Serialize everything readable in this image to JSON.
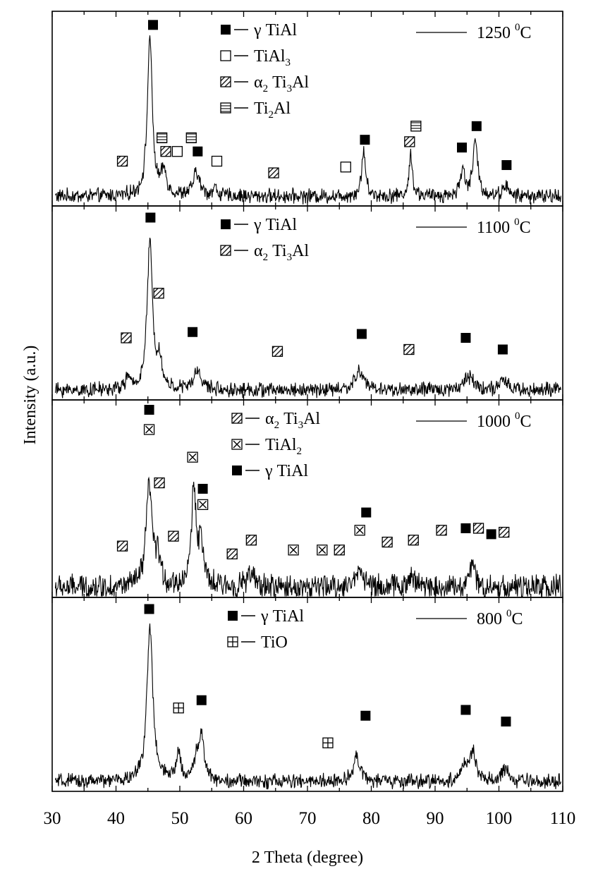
{
  "chart_data": {
    "type": "line",
    "title": "",
    "xlabel": "2 Theta (degree)",
    "ylabel": "Intensity (a.u.)",
    "xlim": [
      30,
      110
    ],
    "x_ticks": [
      30,
      40,
      50,
      60,
      70,
      80,
      90,
      100,
      110
    ],
    "x_tick_labels": [
      "30",
      "40",
      "50",
      "60",
      "70",
      "80",
      "90",
      "100",
      "110"
    ],
    "ylim": [
      0,
      100
    ],
    "marker_types": {
      "gamma": "filled-square",
      "tial3": "open-square",
      "alpha2": "hatched-square",
      "ti2al": "striped-square",
      "tial2": "crossed-square",
      "tio": "grid-square"
    },
    "panels": [
      {
        "id": "p1250",
        "temperature": {
          "value": "1250",
          "sup": "0",
          "unit": "C"
        },
        "noise": 3,
        "peaks": [
          {
            "x": 45.3,
            "h": 82,
            "w": 0.45
          },
          {
            "x": 47.5,
            "h": 12,
            "w": 0.5
          },
          {
            "x": 52.6,
            "h": 12,
            "w": 0.6
          },
          {
            "x": 55.5,
            "h": 4,
            "w": 0.4
          },
          {
            "x": 78.8,
            "h": 24,
            "w": 0.35
          },
          {
            "x": 86.2,
            "h": 22,
            "w": 0.3
          },
          {
            "x": 94.3,
            "h": 14,
            "w": 0.4
          },
          {
            "x": 96.3,
            "h": 28,
            "w": 0.45
          },
          {
            "x": 101.0,
            "h": 6,
            "w": 0.4
          }
        ],
        "legend": [
          {
            "marker": "gamma",
            "sub": "",
            "text": "γ TiAl"
          },
          {
            "marker": "tial3",
            "sub": "3",
            "text": "TiAl"
          },
          {
            "marker": "alpha2",
            "sub": "3",
            "text": "α Ti Al"
          },
          {
            "marker": "ti2al",
            "sub": "2",
            "text": "Ti Al"
          }
        ],
        "markers": [
          {
            "type": "gamma",
            "x": 45.8,
            "y": 93
          },
          {
            "type": "ti2al",
            "x": 47.2,
            "y": 35
          },
          {
            "type": "alpha2",
            "x": 47.8,
            "y": 28
          },
          {
            "type": "tial3",
            "x": 49.6,
            "y": 28
          },
          {
            "type": "ti2al",
            "x": 51.8,
            "y": 35
          },
          {
            "type": "gamma",
            "x": 52.8,
            "y": 28
          },
          {
            "type": "tial3",
            "x": 55.8,
            "y": 23
          },
          {
            "type": "alpha2",
            "x": 41.0,
            "y": 23
          },
          {
            "type": "alpha2",
            "x": 64.7,
            "y": 17
          },
          {
            "type": "tial3",
            "x": 76.0,
            "y": 20
          },
          {
            "type": "gamma",
            "x": 79.0,
            "y": 34
          },
          {
            "type": "alpha2",
            "x": 86.0,
            "y": 33
          },
          {
            "type": "ti2al",
            "x": 87.0,
            "y": 41
          },
          {
            "type": "gamma",
            "x": 94.2,
            "y": 30
          },
          {
            "type": "gamma",
            "x": 96.5,
            "y": 41
          },
          {
            "type": "gamma",
            "x": 101.2,
            "y": 21
          }
        ]
      },
      {
        "id": "p1100",
        "temperature": {
          "value": "1100",
          "sup": "0",
          "unit": "C"
        },
        "noise": 3,
        "peaks": [
          {
            "x": 45.3,
            "h": 76,
            "w": 0.5
          },
          {
            "x": 46.8,
            "h": 15,
            "w": 0.4
          },
          {
            "x": 41.8,
            "h": 6,
            "w": 0.4
          },
          {
            "x": 52.8,
            "h": 10,
            "w": 0.7
          },
          {
            "x": 78.2,
            "h": 10,
            "w": 0.8
          },
          {
            "x": 95.3,
            "h": 7,
            "w": 1.0
          },
          {
            "x": 100.8,
            "h": 5,
            "w": 0.6
          }
        ],
        "legend": [
          {
            "marker": "gamma",
            "sub": "",
            "text": "γ TiAl"
          },
          {
            "marker": "alpha2",
            "sub": "3",
            "text": "α Ti Al"
          }
        ],
        "markers": [
          {
            "type": "gamma",
            "x": 45.4,
            "y": 94
          },
          {
            "type": "alpha2",
            "x": 46.7,
            "y": 55
          },
          {
            "type": "alpha2",
            "x": 41.6,
            "y": 32
          },
          {
            "type": "gamma",
            "x": 52.0,
            "y": 35
          },
          {
            "type": "alpha2",
            "x": 65.3,
            "y": 25
          },
          {
            "type": "gamma",
            "x": 78.5,
            "y": 34
          },
          {
            "type": "alpha2",
            "x": 85.9,
            "y": 26
          },
          {
            "type": "gamma",
            "x": 94.8,
            "y": 32
          },
          {
            "type": "gamma",
            "x": 100.6,
            "y": 26
          }
        ]
      },
      {
        "id": "p1000",
        "temperature": {
          "value": "1000",
          "sup": "0",
          "unit": "C"
        },
        "noise": 5,
        "peaks": [
          {
            "x": 45.2,
            "h": 52,
            "w": 0.55
          },
          {
            "x": 46.6,
            "h": 14,
            "w": 0.4
          },
          {
            "x": 52.2,
            "h": 50,
            "w": 0.45
          },
          {
            "x": 53.3,
            "h": 22,
            "w": 0.4
          },
          {
            "x": 61.0,
            "h": 6,
            "w": 0.8
          },
          {
            "x": 78.2,
            "h": 10,
            "w": 0.7
          },
          {
            "x": 86.5,
            "h": 5,
            "w": 0.8
          },
          {
            "x": 95.8,
            "h": 12,
            "w": 0.5
          }
        ],
        "legend": [
          {
            "marker": "alpha2",
            "sub": "3",
            "text": "α Ti Al"
          },
          {
            "marker": "tial2",
            "sub": "2",
            "text": "TiAl"
          },
          {
            "marker": "gamma",
            "sub": "",
            "text": "γ TiAl"
          }
        ],
        "markers": [
          {
            "type": "gamma",
            "x": 45.2,
            "y": 95
          },
          {
            "type": "tial2",
            "x": 45.2,
            "y": 85
          },
          {
            "type": "tial2",
            "x": 52.0,
            "y": 71
          },
          {
            "type": "alpha2",
            "x": 46.8,
            "y": 58
          },
          {
            "type": "gamma",
            "x": 53.6,
            "y": 55
          },
          {
            "type": "tial2",
            "x": 53.6,
            "y": 47
          },
          {
            "type": "alpha2",
            "x": 41.0,
            "y": 26
          },
          {
            "type": "alpha2",
            "x": 49.0,
            "y": 31
          },
          {
            "type": "alpha2",
            "x": 58.2,
            "y": 22
          },
          {
            "type": "alpha2",
            "x": 61.2,
            "y": 29
          },
          {
            "type": "tial2",
            "x": 67.8,
            "y": 24
          },
          {
            "type": "tial2",
            "x": 72.3,
            "y": 24
          },
          {
            "type": "alpha2",
            "x": 75.0,
            "y": 24
          },
          {
            "type": "tial2",
            "x": 78.2,
            "y": 34
          },
          {
            "type": "gamma",
            "x": 79.2,
            "y": 43
          },
          {
            "type": "alpha2",
            "x": 82.5,
            "y": 28
          },
          {
            "type": "alpha2",
            "x": 86.6,
            "y": 29
          },
          {
            "type": "alpha2",
            "x": 91.0,
            "y": 34
          },
          {
            "type": "gamma",
            "x": 94.8,
            "y": 35
          },
          {
            "type": "alpha2",
            "x": 96.8,
            "y": 35
          },
          {
            "type": "gamma",
            "x": 98.8,
            "y": 32
          },
          {
            "type": "alpha2",
            "x": 100.8,
            "y": 33
          }
        ]
      },
      {
        "id": "p800",
        "temperature": {
          "value": "800",
          "sup": "0",
          "unit": "C"
        },
        "noise": 3,
        "peaks": [
          {
            "x": 45.3,
            "h": 80,
            "w": 0.55
          },
          {
            "x": 49.8,
            "h": 15,
            "w": 0.4
          },
          {
            "x": 52.6,
            "h": 10,
            "w": 0.5
          },
          {
            "x": 53.4,
            "h": 22,
            "w": 0.5
          },
          {
            "x": 77.7,
            "h": 14,
            "w": 0.6
          },
          {
            "x": 94.5,
            "h": 8,
            "w": 0.6
          },
          {
            "x": 95.9,
            "h": 16,
            "w": 0.5
          },
          {
            "x": 101.0,
            "h": 7,
            "w": 0.5
          }
        ],
        "legend": [
          {
            "marker": "gamma",
            "sub": "",
            "text": "γ TiAl"
          },
          {
            "marker": "tio",
            "sub": "",
            "text": "TiO"
          }
        ],
        "markers": [
          {
            "type": "gamma",
            "x": 45.2,
            "y": 94
          },
          {
            "type": "tio",
            "x": 49.8,
            "y": 43
          },
          {
            "type": "gamma",
            "x": 53.4,
            "y": 47
          },
          {
            "type": "tio",
            "x": 73.2,
            "y": 25
          },
          {
            "type": "gamma",
            "x": 79.1,
            "y": 39
          },
          {
            "type": "gamma",
            "x": 94.8,
            "y": 42
          },
          {
            "type": "gamma",
            "x": 101.1,
            "y": 36
          }
        ]
      }
    ]
  }
}
